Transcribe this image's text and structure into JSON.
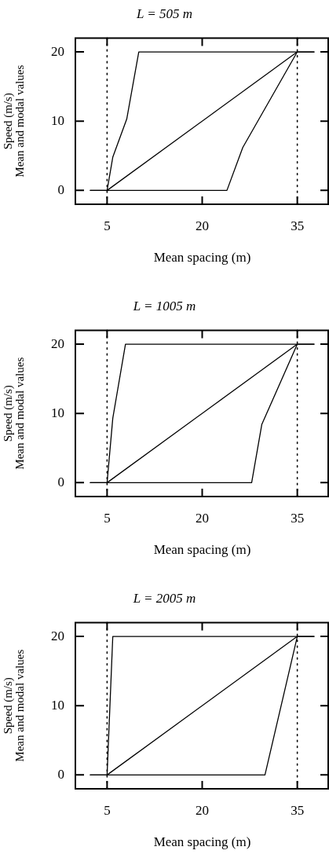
{
  "chart_data": [
    {
      "type": "line",
      "title": "L = 505 m",
      "xlabel": "Mean spacing (m)",
      "ylabel": "Speed (m/s)\nMean and modal values",
      "xlim": [
        0,
        40
      ],
      "ylim": [
        -2,
        22
      ],
      "xticks": [
        5,
        20,
        35
      ],
      "yticks": [
        0,
        10,
        20
      ],
      "grid": false,
      "legend": false,
      "marker": "none",
      "line_style": "solid",
      "ref_lines": [
        {
          "axis": "x",
          "value": 5,
          "line_style": "dotted",
          "color": "#000000"
        },
        {
          "axis": "x",
          "value": 35,
          "line_style": "dotted",
          "color": "#000000"
        }
      ],
      "series": [
        {
          "color": "#000000",
          "x": [
            2.3,
            5,
            5.9,
            8.1,
            10,
            37.7
          ],
          "values": [
            0,
            0,
            4.8,
            10.3,
            20,
            20
          ]
        },
        {
          "color": "#000000",
          "x": [
            2.3,
            23.9,
            26.4,
            35,
            37.7
          ],
          "values": [
            0,
            0,
            6.2,
            20,
            20
          ]
        },
        {
          "color": "#000000",
          "x": [
            5,
            35
          ],
          "values": [
            0,
            20
          ]
        }
      ]
    },
    {
      "type": "line",
      "title": "L = 1005 m",
      "xlabel": "Mean spacing (m)",
      "ylabel": "Speed (m/s)\nMean and modal values",
      "xlim": [
        0,
        40
      ],
      "ylim": [
        -2,
        22
      ],
      "xticks": [
        5,
        20,
        35
      ],
      "yticks": [
        0,
        10,
        20
      ],
      "grid": false,
      "legend": false,
      "marker": "none",
      "line_style": "solid",
      "ref_lines": [
        {
          "axis": "x",
          "value": 5,
          "line_style": "dotted",
          "color": "#000000"
        },
        {
          "axis": "x",
          "value": 35,
          "line_style": "dotted",
          "color": "#000000"
        }
      ],
      "series": [
        {
          "color": "#000000",
          "x": [
            2.3,
            5,
            5.9,
            7.9,
            37.7
          ],
          "values": [
            0,
            0,
            9.3,
            20,
            20
          ]
        },
        {
          "color": "#000000",
          "x": [
            2.3,
            27.8,
            29.4,
            35,
            37.7
          ],
          "values": [
            0,
            0,
            8.4,
            20,
            20
          ]
        },
        {
          "color": "#000000",
          "x": [
            5,
            35
          ],
          "values": [
            0,
            20
          ]
        }
      ]
    },
    {
      "type": "line",
      "title": "L = 2005 m",
      "xlabel": "Mean spacing (m)",
      "ylabel": "Speed (m/s)\nMean and modal values",
      "xlim": [
        0,
        40
      ],
      "ylim": [
        -2,
        22
      ],
      "xticks": [
        5,
        20,
        35
      ],
      "yticks": [
        0,
        10,
        20
      ],
      "grid": false,
      "legend": false,
      "marker": "none",
      "line_style": "solid",
      "ref_lines": [
        {
          "axis": "x",
          "value": 5,
          "line_style": "dotted",
          "color": "#000000"
        },
        {
          "axis": "x",
          "value": 35,
          "line_style": "dotted",
          "color": "#000000"
        }
      ],
      "series": [
        {
          "color": "#000000",
          "x": [
            2.3,
            5,
            5.9,
            37.7
          ],
          "values": [
            0,
            0,
            20,
            20
          ]
        },
        {
          "color": "#000000",
          "x": [
            2.3,
            29.9,
            35,
            37.7
          ],
          "values": [
            0,
            0,
            20,
            20
          ]
        },
        {
          "color": "#000000",
          "x": [
            5,
            35
          ],
          "values": [
            0,
            20
          ]
        }
      ]
    }
  ]
}
